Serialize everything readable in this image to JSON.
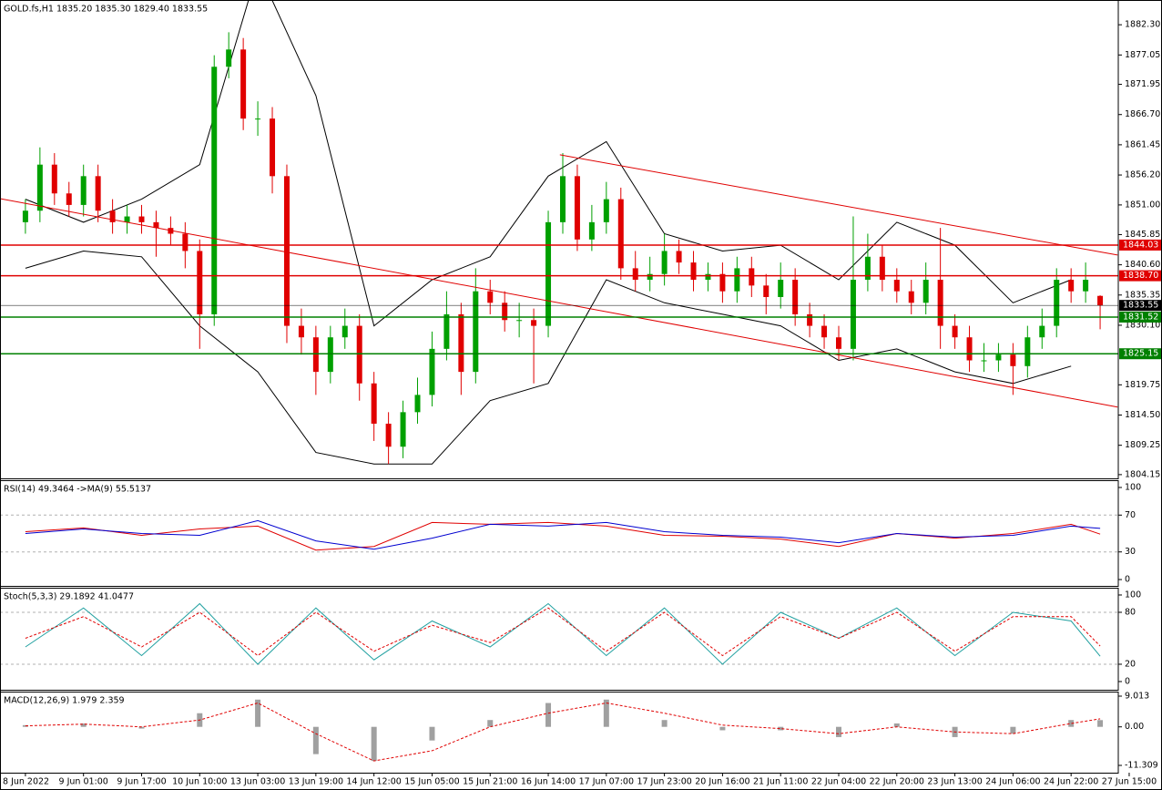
{
  "chart_data": [
    {
      "type": "candlestick",
      "title": "GOLD.fs,H1  1835.20 1835.30 1829.40 1833.55",
      "up_color": "#00a000",
      "down_color": "#e00000",
      "open": [
        1848,
        1850,
        1858,
        1853,
        1851,
        1856,
        1850,
        1848,
        1849,
        1848,
        1847,
        1846,
        1843,
        1832,
        1875,
        1878,
        1866,
        1866,
        1856,
        1830,
        1828,
        1822,
        1828,
        1830,
        1820,
        1813,
        1809,
        1815,
        1818,
        1826,
        1832,
        1822,
        1836,
        1834,
        1831,
        1831,
        1830,
        1848,
        1856,
        1845,
        1848,
        1852,
        1840,
        1838,
        1839,
        1843,
        1841,
        1838,
        1839,
        1836,
        1840,
        1837,
        1835,
        1838,
        1832,
        1830,
        1828,
        1826,
        1838,
        1842,
        1838,
        1836,
        1834,
        1838,
        1830,
        1828,
        1824,
        1824,
        1825,
        1823,
        1828,
        1830,
        1838,
        1836,
        1835.2
      ],
      "high": [
        1852,
        1861,
        1860,
        1855,
        1858,
        1858,
        1852,
        1851,
        1851,
        1850,
        1849,
        1848,
        1845,
        1877,
        1881,
        1880,
        1869,
        1868,
        1858,
        1833,
        1830,
        1830,
        1833,
        1832,
        1822,
        1815,
        1817,
        1821,
        1829,
        1836,
        1834,
        1840,
        1838,
        1836,
        1834,
        1833,
        1850,
        1860,
        1858,
        1851,
        1855,
        1854,
        1843,
        1842,
        1846,
        1845,
        1843,
        1841,
        1841,
        1842,
        1842,
        1839,
        1841,
        1840,
        1834,
        1832,
        1830,
        1849,
        1846,
        1844,
        1840,
        1838,
        1841,
        1847,
        1832,
        1830,
        1827,
        1827,
        1827,
        1830,
        1833,
        1840,
        1840,
        1841,
        1835.3
      ],
      "low": [
        1846,
        1848,
        1851,
        1849,
        1849,
        1848,
        1846,
        1846,
        1846,
        1842,
        1844,
        1840,
        1826,
        1830,
        1873,
        1864,
        1863,
        1853,
        1827,
        1825,
        1818,
        1820,
        1826,
        1817,
        1810,
        1806,
        1807,
        1813,
        1816,
        1824,
        1818,
        1820,
        1832,
        1829,
        1828,
        1820,
        1828,
        1846,
        1843,
        1843,
        1846,
        1838,
        1836,
        1836,
        1837,
        1839,
        1836,
        1836,
        1834,
        1834,
        1835,
        1832,
        1833,
        1830,
        1828,
        1826,
        1824,
        1824,
        1836,
        1836,
        1834,
        1832,
        1832,
        1826,
        1826,
        1822,
        1822,
        1822,
        1818,
        1821,
        1826,
        1828,
        1834,
        1834,
        1829.4
      ],
      "close": [
        1850,
        1858,
        1853,
        1851,
        1856,
        1850,
        1848,
        1849,
        1848,
        1847,
        1846,
        1843,
        1832,
        1875,
        1878,
        1866,
        1866,
        1856,
        1830,
        1828,
        1822,
        1828,
        1830,
        1820,
        1813,
        1809,
        1815,
        1818,
        1826,
        1832,
        1822,
        1836,
        1834,
        1831,
        1831,
        1830,
        1848,
        1856,
        1845,
        1848,
        1852,
        1840,
        1838,
        1839,
        1843,
        1841,
        1838,
        1839,
        1836,
        1840,
        1837,
        1835,
        1838,
        1832,
        1830,
        1828,
        1826,
        1838,
        1842,
        1838,
        1836,
        1834,
        1838,
        1830,
        1828,
        1824,
        1824,
        1825,
        1823,
        1828,
        1830,
        1838,
        1836,
        1838,
        1833.55
      ],
      "xlim": [
        -1.75,
        75.25
      ],
      "ylim": [
        1803.5,
        1886.6
      ],
      "yticks": [
        {
          "value": 1882.3,
          "label": "1882.30"
        },
        1877.05,
        1871.95,
        {
          "value": 1866.7,
          "label": "1866.70"
        },
        1861.45,
        {
          "value": 1856.2,
          "label": "1856.20"
        },
        {
          "value": 1851,
          "label": "1851.00"
        },
        1845.85,
        {
          "value": 1840.6,
          "label": "1840.60"
        },
        1835.35,
        {
          "value": 1830.1,
          "label": "1830.10"
        },
        1819.75,
        {
          "value": 1814.5,
          "label": "1814.50"
        },
        1809.25,
        1804.15
      ],
      "xticks": [
        {
          "value": 0,
          "label": "8 Jun 2022"
        },
        {
          "value": 4,
          "label": "9 Jun 01:00"
        },
        {
          "value": 8,
          "label": "9 Jun 17:00"
        },
        {
          "value": 12,
          "label": "10 Jun 10:00"
        },
        {
          "value": 16,
          "label": "13 Jun 03:00"
        },
        {
          "value": 20,
          "label": "13 Jun 19:00"
        },
        {
          "value": 24,
          "label": "14 Jun 12:00"
        },
        {
          "value": 28,
          "label": "15 Jun 05:00"
        },
        {
          "value": 32,
          "label": "15 Jun 21:00"
        },
        {
          "value": 36,
          "label": "16 Jun 14:00"
        },
        {
          "value": 40,
          "label": "17 Jun 07:00"
        },
        {
          "value": 44,
          "label": "17 Jun 23:00"
        },
        {
          "value": 48,
          "label": "20 Jun 16:00"
        },
        {
          "value": 52,
          "label": "21 Jun 11:00"
        },
        {
          "value": 56,
          "label": "22 Jun 04:00"
        },
        {
          "value": 60,
          "label": "22 Jun 20:00"
        },
        {
          "value": 64,
          "label": "23 Jun 13:00"
        },
        {
          "value": 68,
          "label": "24 Jun 06:00"
        },
        {
          "value": 72,
          "label": "24 Jun 22:00"
        },
        {
          "value": 76,
          "label": "27 Jun 15:00"
        }
      ],
      "overlays": [
        {
          "color": "#000000",
          "x": [
            0,
            4,
            8,
            12,
            16,
            20,
            24,
            28,
            32,
            36,
            40,
            44,
            48,
            52,
            56,
            60,
            64,
            68,
            72
          ],
          "values": [
            1852,
            1848,
            1852,
            1858,
            1892,
            1870,
            1830,
            1838,
            1842,
            1856,
            1862,
            1846,
            1843,
            1844,
            1838,
            1848,
            1844,
            1834,
            1838
          ]
        },
        {
          "color": "#000000",
          "x": [
            0,
            4,
            8,
            12,
            16,
            20,
            24,
            28,
            32,
            36,
            40,
            44,
            48,
            52,
            56,
            60,
            64,
            68,
            72
          ],
          "values": [
            1840,
            1843,
            1842,
            1830,
            1822,
            1808,
            1806,
            1806,
            1817,
            1820,
            1838,
            1834,
            1832,
            1830,
            1824,
            1826,
            1822,
            1820,
            1823
          ]
        }
      ],
      "trendlines": [
        {
          "color": "#e00000",
          "x": [
            36.8,
            75.2
          ],
          "values": [
            1859.7,
            1842.3
          ]
        },
        {
          "color": "#e00000",
          "x": [
            -1.75,
            75.2
          ],
          "values": [
            1852.1,
            1815.9
          ]
        }
      ],
      "levels": [
        {
          "value": 1844.03,
          "label": "1844.03",
          "color": "#e00000"
        },
        {
          "value": 1838.7,
          "label": "1838.70",
          "color": "#e00000"
        },
        {
          "value": 1831.52,
          "label": "1831.52",
          "color": "#008000"
        },
        {
          "value": 1825.15,
          "label": "1825.15",
          "color": "#008000"
        }
      ],
      "last_price": {
        "value": 1833.55,
        "label": "1833.55",
        "color": "#000000"
      }
    },
    {
      "type": "line",
      "title": "RSI(14) 49.3464  ->MA(9) 55.5137",
      "ylim": [
        -6.9,
        107.9
      ],
      "yticks": [
        100,
        70,
        30,
        0
      ],
      "levels": [
        70,
        30
      ],
      "x": [
        0,
        4,
        8,
        12,
        16,
        20,
        24,
        28,
        32,
        36,
        40,
        44,
        48,
        52,
        56,
        60,
        64,
        68,
        72,
        74
      ],
      "series": [
        {
          "kind": "line",
          "color": "#e00000",
          "values": [
            52,
            56,
            48,
            55,
            58,
            32,
            36,
            62,
            60,
            62,
            58,
            48,
            47,
            44,
            36,
            50,
            45,
            50,
            60,
            49.3464
          ]
        },
        {
          "kind": "line",
          "color": "#0000d0",
          "values": [
            50,
            55,
            50,
            48,
            64,
            42,
            33,
            45,
            60,
            58,
            62,
            52,
            48,
            46,
            40,
            50,
            46,
            48,
            58,
            55.5137
          ]
        }
      ]
    },
    {
      "type": "line",
      "title": "Stoch(5,3,3) 29.1892 41.0477",
      "ylim": [
        -9.5,
        108.4
      ],
      "yticks": [
        100,
        80,
        20,
        0
      ],
      "levels": [
        80,
        20
      ],
      "x": [
        0,
        4,
        8,
        12,
        16,
        20,
        24,
        28,
        32,
        36,
        40,
        44,
        48,
        52,
        56,
        60,
        64,
        68,
        72,
        74
      ],
      "series": [
        {
          "kind": "line",
          "color": "#20a0a0",
          "values": [
            40,
            85,
            30,
            90,
            20,
            85,
            25,
            70,
            40,
            90,
            30,
            85,
            20,
            80,
            50,
            85,
            30,
            80,
            70,
            29.1892
          ]
        },
        {
          "kind": "line",
          "color": "#e00000",
          "dash": true,
          "values": [
            50,
            75,
            40,
            80,
            30,
            80,
            35,
            65,
            45,
            85,
            35,
            80,
            30,
            75,
            50,
            80,
            35,
            75,
            75,
            41.0477
          ]
        }
      ]
    },
    {
      "type": "bar",
      "title": "MACD(12,26,9) 1.979 2.359",
      "ylim": [
        -13.45,
        10.35
      ],
      "yticks": [
        9.013,
        {
          "value": 0,
          "label": "0.00"
        },
        -11.309
      ],
      "x": [
        0,
        4,
        8,
        12,
        16,
        20,
        24,
        28,
        32,
        36,
        40,
        44,
        48,
        52,
        56,
        60,
        64,
        68,
        72,
        74
      ],
      "series": [
        {
          "kind": "bar",
          "color": "#a0a0a0",
          "values": [
            0.5,
            1,
            -0.5,
            4,
            8,
            -8,
            -10,
            -4,
            2,
            7,
            8,
            2,
            -1,
            -1,
            -3,
            1,
            -3,
            -2,
            2,
            1.979
          ]
        },
        {
          "kind": "line",
          "color": "#e00000",
          "dash": true,
          "values": [
            0.3,
            0.8,
            0,
            2,
            7,
            -2,
            -10,
            -7,
            0,
            4,
            7,
            4,
            0.5,
            -0.5,
            -2,
            0,
            -1.5,
            -2,
            1,
            2.359
          ]
        }
      ]
    }
  ]
}
